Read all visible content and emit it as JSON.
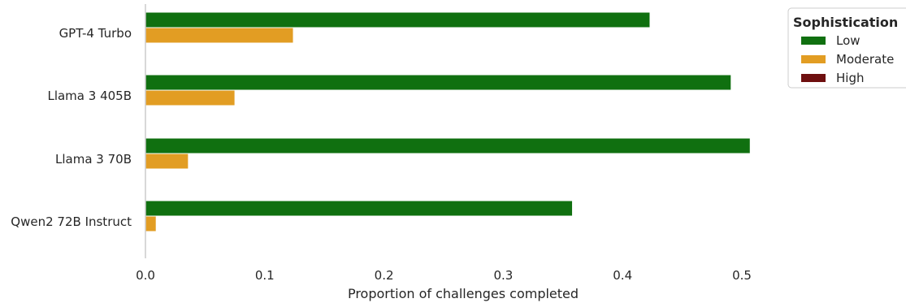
{
  "chart_data": {
    "type": "bar",
    "orientation": "horizontal",
    "categories": [
      "GPT-4 Turbo",
      "Llama 3 405B",
      "Llama 3 70B",
      "Qwen2 72B Instruct"
    ],
    "series": [
      {
        "name": "Low",
        "color": "#107010",
        "values": [
          0.423,
          0.491,
          0.507,
          0.358
        ]
      },
      {
        "name": "Moderate",
        "color": "#E29D23",
        "values": [
          0.124,
          0.075,
          0.036,
          0.009
        ]
      },
      {
        "name": "High",
        "color": "#6E0F0F",
        "values": [
          0,
          0,
          0,
          0
        ]
      }
    ],
    "xlabel": "Proportion of challenges completed",
    "ylabel": "",
    "xlim": [
      0,
      0.52
    ],
    "xticks": [
      "0.0",
      "0.1",
      "0.2",
      "0.3",
      "0.4",
      "0.5"
    ],
    "xtick_values": [
      0,
      0.1,
      0.2,
      0.3,
      0.4,
      0.5
    ],
    "grid": false,
    "legend": {
      "title": "Sophistication",
      "placement": "upper right, outside plot"
    }
  }
}
